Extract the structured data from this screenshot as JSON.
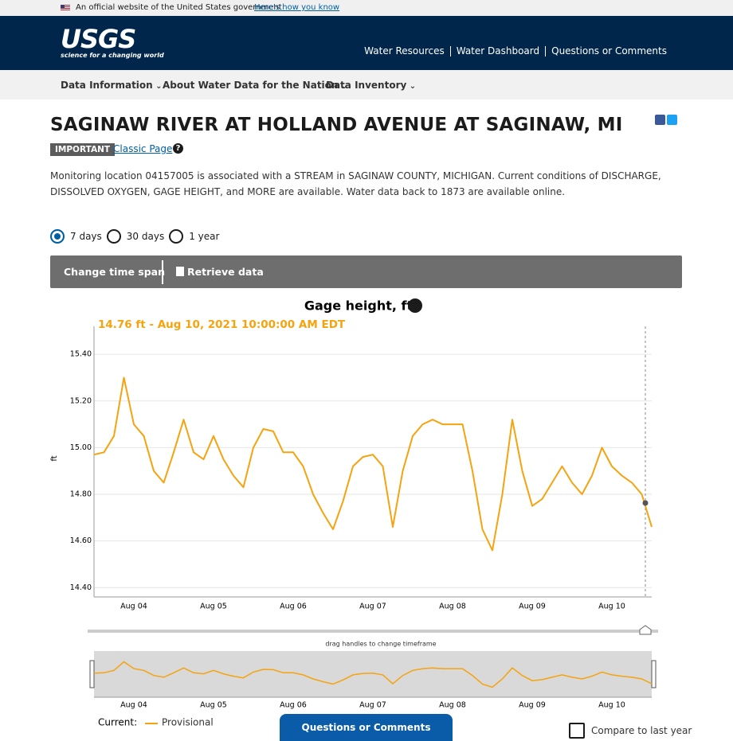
{
  "banner": {
    "text": "An official website of the United States government",
    "link": "Here’s how you know"
  },
  "header": {
    "logo": "USGS",
    "tagline": "science for a changing world",
    "links": [
      "Water Resources",
      "Water Dashboard",
      "Questions or Comments"
    ]
  },
  "nav": [
    "Data Information",
    "About Water Data for the Nation",
    "Data Inventory"
  ],
  "location": {
    "title": "SAGINAW RIVER AT HOLLAND AVENUE AT SAGINAW, MI",
    "badge": "IMPORTANT",
    "classic_link": "Classic Page",
    "description": "Monitoring location 04157005 is associated with a STREAM in SAGINAW COUNTY, MICHIGAN. Current conditions of DISCHARGE, DISSOLVED OXYGEN, GAGE HEIGHT, and MORE are available. Water data back to 1873 are available online."
  },
  "time_span": {
    "options": [
      "7 days",
      "30 days",
      "1 year"
    ],
    "selected": 0
  },
  "toolbar": {
    "change": "Change time span",
    "retrieve": "Retrieve data"
  },
  "chart_data": {
    "type": "line",
    "title": "Gage height, ft",
    "tooltip": "14.76 ft - Aug 10, 2021 10:00:00 AM EDT",
    "y_label": "ft",
    "legend_title": "Current:",
    "categories": [
      null,
      null,
      null,
      null,
      "Aug 04",
      null,
      null,
      null,
      null,
      null,
      null,
      null,
      "Aug 05",
      null,
      null,
      null,
      null,
      null,
      null,
      null,
      "Aug 06",
      null,
      null,
      null,
      null,
      null,
      null,
      null,
      "Aug 07",
      null,
      null,
      null,
      null,
      null,
      null,
      null,
      "Aug 08",
      null,
      null,
      null,
      null,
      null,
      null,
      null,
      "Aug 09",
      null,
      null,
      null,
      null,
      null,
      null,
      null,
      "Aug 10",
      null,
      null,
      null,
      null
    ],
    "series": [
      {
        "name": "Provisional",
        "color": "#f5a30f",
        "values": [
          14.97,
          14.98,
          15.05,
          15.3,
          15.1,
          15.05,
          14.9,
          14.85,
          14.98,
          15.12,
          14.98,
          14.95,
          15.05,
          14.95,
          14.88,
          14.83,
          15.0,
          15.08,
          15.07,
          14.98,
          14.98,
          14.92,
          14.8,
          14.72,
          14.65,
          14.77,
          14.92,
          14.96,
          14.97,
          14.92,
          14.66,
          14.9,
          15.05,
          15.1,
          15.12,
          15.1,
          15.1,
          15.1,
          14.9,
          14.65,
          14.56,
          14.8,
          15.12,
          14.9,
          14.75,
          14.78,
          14.85,
          14.92,
          14.85,
          14.8,
          14.88,
          15.0,
          14.92,
          14.88,
          14.85,
          14.8,
          14.66
        ]
      }
    ],
    "ylim": [
      14.36,
      15.52
    ],
    "yticks": [
      {
        "value": 14.4,
        "label": "14.40"
      },
      {
        "value": 14.6,
        "label": "14.60"
      },
      {
        "value": 14.8,
        "label": "14.80"
      },
      {
        "value": 15.0,
        "label": "15.00"
      },
      {
        "value": 15.2,
        "label": "15.20"
      },
      {
        "value": 15.4,
        "label": "15.40"
      }
    ],
    "grid": true
  },
  "brush_label": "drag handles to change timeframe",
  "footer": {
    "feedback": "Questions or Comments",
    "compare": "Compare to last year"
  }
}
